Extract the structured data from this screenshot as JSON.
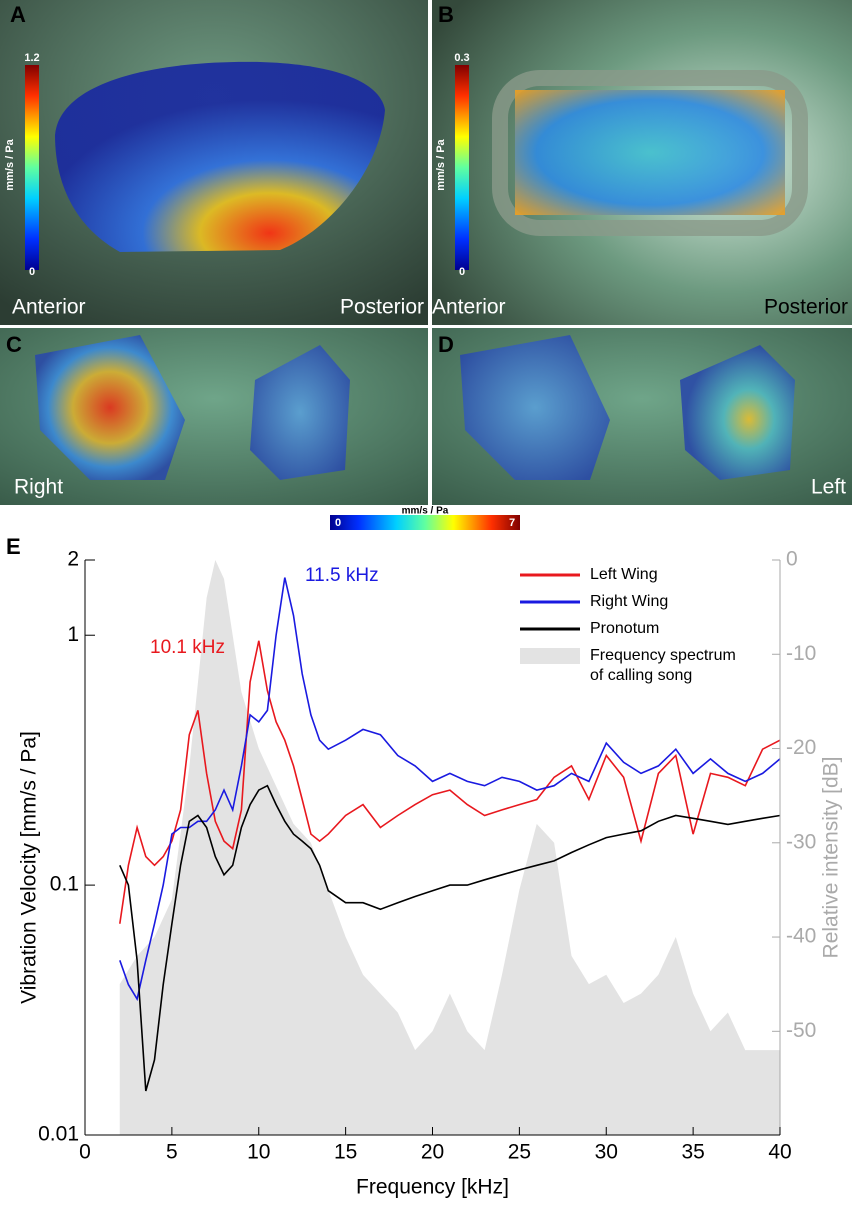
{
  "panels": {
    "A": {
      "letter": "A",
      "left": "Anterior",
      "right": "Posterior",
      "cbar_max": "1.2",
      "cbar_min": "0",
      "cbar_unit": "mm/s / Pa"
    },
    "B": {
      "letter": "B",
      "left": "Anterior",
      "right": "Posterior",
      "cbar_max": "0.3",
      "cbar_min": "0",
      "cbar_unit": "mm/s / Pa"
    },
    "C": {
      "letter": "C",
      "left": "Right"
    },
    "D": {
      "letter": "D",
      "right": "Left"
    },
    "shared_cbar": {
      "min": "0",
      "max": "7",
      "unit": "mm/s / Pa"
    }
  },
  "chart_data": {
    "type": "line",
    "letter": "E",
    "xlabel": "Frequency [kHz]",
    "ylabel": "Vibration Velocity [mm/s / Pa]",
    "y2label": "Relative intensity [dB]",
    "ylog": true,
    "xlim": [
      0,
      40
    ],
    "xticks": [
      0,
      5,
      10,
      15,
      20,
      25,
      30,
      35,
      40
    ],
    "ylim": [
      0.01,
      2
    ],
    "yticks": [
      0.01,
      0.1,
      1,
      2
    ],
    "y2lim": [
      -61,
      0
    ],
    "y2ticks": [
      0,
      -10,
      -20,
      -30,
      -40,
      -50
    ],
    "legend": "top-right",
    "annotations": [
      {
        "text": "10.1 kHz",
        "color": "#e8181e"
      },
      {
        "text": "11.5 kHz",
        "color": "#1a1ae0"
      }
    ],
    "x": [
      2,
      2.5,
      3,
      3.5,
      4,
      4.5,
      5,
      5.5,
      6,
      6.5,
      7,
      7.5,
      8,
      8.5,
      9,
      9.5,
      10,
      10.5,
      11,
      11.5,
      12,
      12.5,
      13,
      13.5,
      14,
      15,
      16,
      17,
      18,
      19,
      20,
      21,
      22,
      23,
      24,
      25,
      26,
      27,
      28,
      29,
      30,
      31,
      32,
      33,
      34,
      35,
      36,
      37,
      38,
      39,
      40
    ],
    "series": [
      {
        "name": "Left Wing",
        "color": "#e8181e",
        "values": [
          0.07,
          0.12,
          0.17,
          0.13,
          0.12,
          0.13,
          0.15,
          0.2,
          0.4,
          0.5,
          0.28,
          0.18,
          0.15,
          0.14,
          0.2,
          0.65,
          0.95,
          0.6,
          0.45,
          0.38,
          0.3,
          0.22,
          0.16,
          0.15,
          0.16,
          0.19,
          0.21,
          0.17,
          0.19,
          0.21,
          0.23,
          0.24,
          0.21,
          0.19,
          0.2,
          0.21,
          0.22,
          0.27,
          0.3,
          0.22,
          0.33,
          0.27,
          0.15,
          0.28,
          0.33,
          0.16,
          0.28,
          0.27,
          0.25,
          0.35,
          0.38
        ]
      },
      {
        "name": "Right Wing",
        "color": "#1a1ae0",
        "values": [
          0.05,
          0.04,
          0.035,
          0.05,
          0.07,
          0.1,
          0.16,
          0.17,
          0.17,
          0.18,
          0.18,
          0.2,
          0.24,
          0.2,
          0.3,
          0.48,
          0.45,
          0.5,
          1.0,
          1.7,
          1.2,
          0.7,
          0.48,
          0.38,
          0.35,
          0.38,
          0.42,
          0.4,
          0.33,
          0.3,
          0.26,
          0.28,
          0.26,
          0.25,
          0.27,
          0.26,
          0.24,
          0.25,
          0.28,
          0.26,
          0.37,
          0.31,
          0.28,
          0.3,
          0.35,
          0.28,
          0.32,
          0.28,
          0.26,
          0.28,
          0.32
        ]
      },
      {
        "name": "Pronotum",
        "color": "#000000",
        "values": [
          0.12,
          0.1,
          0.05,
          0.015,
          0.02,
          0.04,
          0.07,
          0.12,
          0.18,
          0.19,
          0.17,
          0.13,
          0.11,
          0.12,
          0.17,
          0.21,
          0.24,
          0.25,
          0.21,
          0.18,
          0.16,
          0.15,
          0.14,
          0.12,
          0.095,
          0.085,
          0.085,
          0.08,
          0.085,
          0.09,
          0.095,
          0.1,
          0.1,
          0.105,
          0.11,
          0.115,
          0.12,
          0.125,
          0.135,
          0.145,
          0.155,
          0.16,
          0.165,
          0.18,
          0.19,
          0.185,
          0.18,
          0.175,
          0.18,
          0.185,
          0.19
        ]
      },
      {
        "name": "Frequency spectrum\nof calling song",
        "color": "#e3e3e3",
        "type": "area",
        "axis": "y2",
        "x": [
          2,
          3,
          4,
          5,
          6,
          7,
          7.5,
          8,
          8.5,
          9,
          10,
          11,
          12,
          13,
          14,
          15,
          16,
          17,
          18,
          19,
          20,
          21,
          22,
          23,
          24,
          25,
          26,
          27,
          28,
          29,
          30,
          31,
          32,
          33,
          34,
          35,
          36,
          37,
          38,
          39,
          40
        ],
        "values": [
          -45,
          -42,
          -40,
          -36,
          -22,
          -4,
          0,
          -2,
          -8,
          -14,
          -20,
          -24,
          -28,
          -30,
          -35,
          -40,
          -44,
          -46,
          -48,
          -52,
          -50,
          -46,
          -50,
          -52,
          -44,
          -35,
          -28,
          -30,
          -42,
          -45,
          -44,
          -47,
          -46,
          -44,
          -40,
          -46,
          -50,
          -48,
          -52,
          -52,
          -52
        ]
      }
    ]
  }
}
